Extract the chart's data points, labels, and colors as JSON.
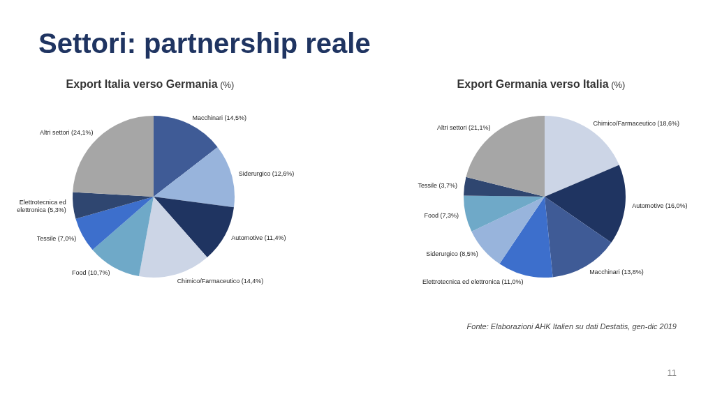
{
  "chart_data": [
    {
      "type": "other",
      "title": "Settori: partnership reale",
      "annotations": [
        "Fonte: Elaborazioni AHK Italien su dati Destatis, gen-dic 2019",
        "11"
      ]
    },
    {
      "type": "pie",
      "title": "Export Italia verso Germania (%)",
      "categories": [
        "Macchinari",
        "Siderurgico",
        "Automotive",
        "Chimico/Farmaceutico",
        "Food",
        "Tessile",
        "Elettrotecnica ed elettronica",
        "Altri settori"
      ],
      "values": [
        14.5,
        12.6,
        11.4,
        14.4,
        10.7,
        7.0,
        5.3,
        24.1
      ],
      "value_labels": [
        "(14,5%)",
        "(12,6%)",
        "(11,4%)",
        "(14,4%)",
        "(10,7%)",
        "(7,0%)",
        "(5,3%)",
        "(24,1%)"
      ],
      "colors": [
        "#3f5b96",
        "#98b4dc",
        "#1f3461",
        "#ccd5e6",
        "#6fa9c8",
        "#3d6fcc",
        "#2f4670",
        "#a6a6a6"
      ]
    },
    {
      "type": "pie",
      "title": "Export Germania verso Italia (%)",
      "categories": [
        "Chimico/Farmaceutico",
        "Automotive",
        "Macchinari",
        "Elettrotecnica ed elettronica",
        "Siderurgico",
        "Food",
        "Tessile",
        "Altri settori"
      ],
      "values": [
        18.6,
        16.0,
        13.8,
        11.0,
        8.5,
        7.3,
        3.7,
        21.1
      ],
      "value_labels": [
        "(18,6%)",
        "(16,0%)",
        "(13,8%)",
        "(11,0%)",
        "(8,5%)",
        "(7,3%)",
        "(3,7%)",
        "(21,1%)"
      ],
      "colors": [
        "#ccd5e6",
        "#1f3461",
        "#3f5b96",
        "#3d6fcc",
        "#98b4dc",
        "#6fa9c8",
        "#2f4670",
        "#a6a6a6"
      ]
    }
  ]
}
